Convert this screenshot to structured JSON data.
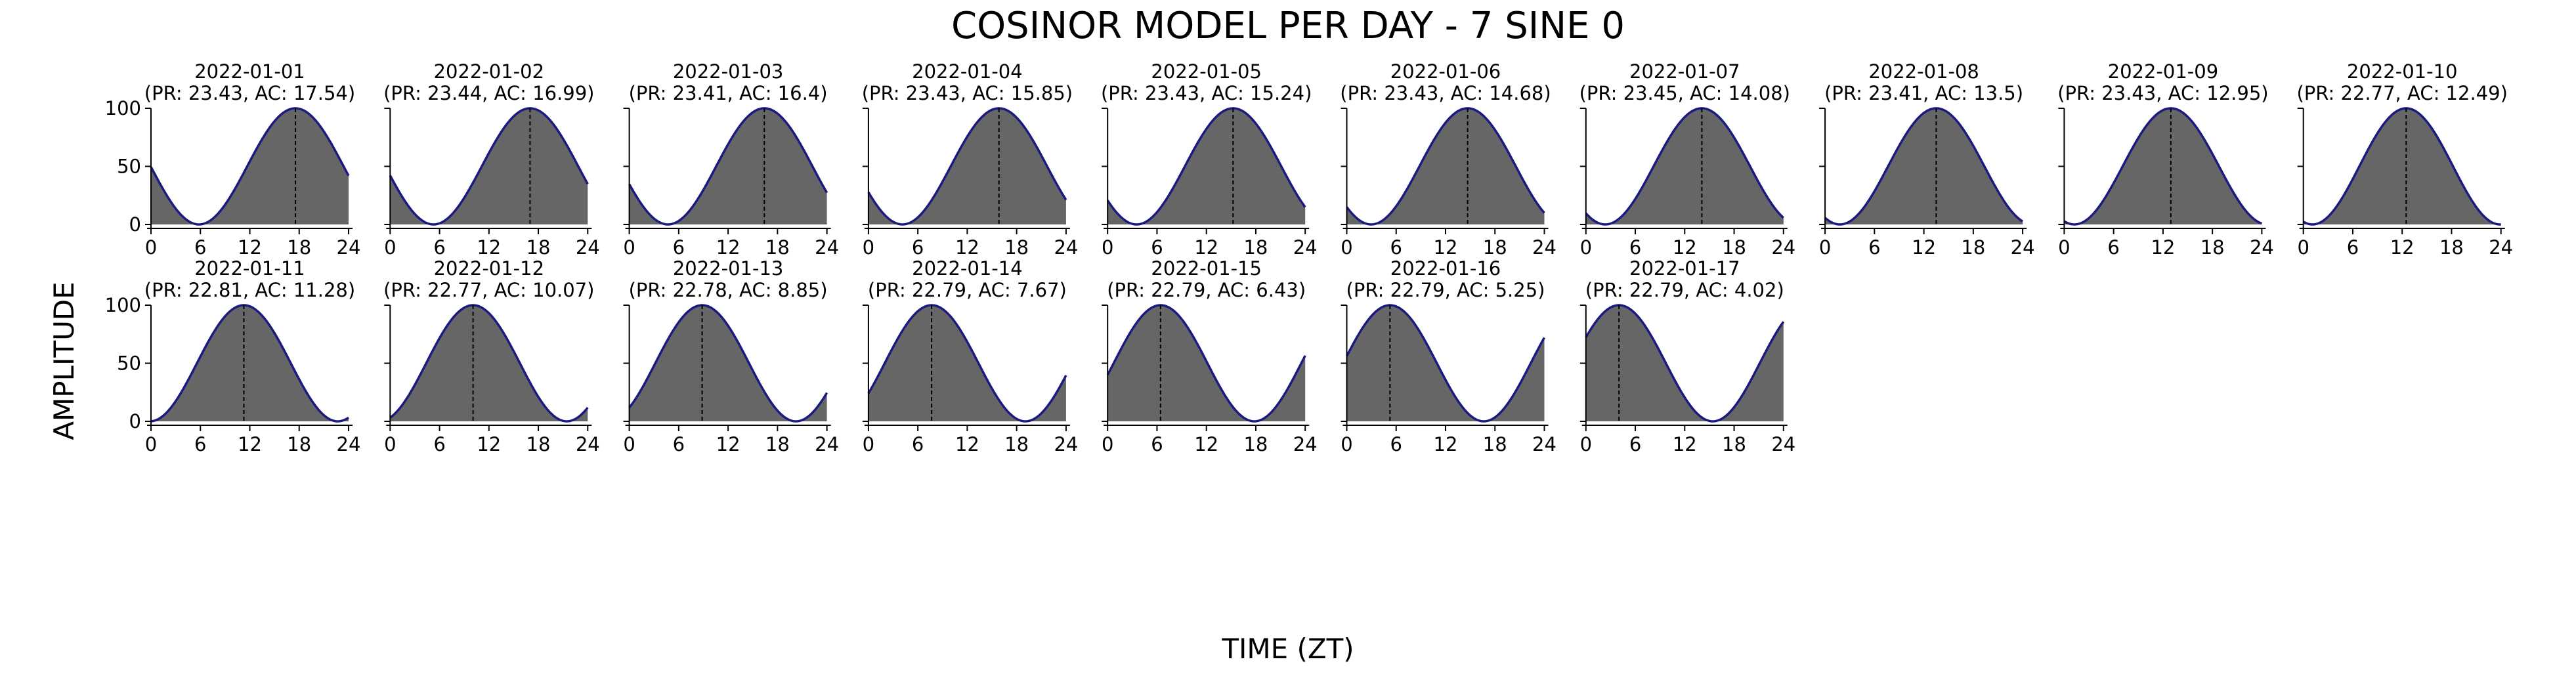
{
  "figure": {
    "title": "COSINOR MODEL PER DAY - 7 SINE 0",
    "xlabel": "TIME (ZT)",
    "ylabel": "AMPLITUDE"
  },
  "colors": {
    "fill": "#666666",
    "curve": "#1a1a80",
    "axis": "#000000",
    "acrophase_line": "#000000"
  },
  "chart_data": {
    "type": "area",
    "model": "cosinor (amplitude 0-100 vs time)",
    "x_range": [
      0,
      24
    ],
    "y_range": [
      0,
      100
    ],
    "x_ticks": [
      0,
      6,
      12,
      18,
      24
    ],
    "y_ticks": [
      0,
      50,
      100
    ],
    "grid": false,
    "panels": [
      {
        "date": "2022-01-01",
        "label": "(PR: 23.43, AC: 17.54)",
        "period": 23.43,
        "acrophase": 17.54
      },
      {
        "date": "2022-01-02",
        "label": "(PR: 23.44, AC: 16.99)",
        "period": 23.44,
        "acrophase": 16.99
      },
      {
        "date": "2022-01-03",
        "label": "(PR: 23.41, AC: 16.4)",
        "period": 23.41,
        "acrophase": 16.4
      },
      {
        "date": "2022-01-04",
        "label": "(PR: 23.43, AC: 15.85)",
        "period": 23.43,
        "acrophase": 15.85
      },
      {
        "date": "2022-01-05",
        "label": "(PR: 23.43, AC: 15.24)",
        "period": 23.43,
        "acrophase": 15.24
      },
      {
        "date": "2022-01-06",
        "label": "(PR: 23.43, AC: 14.68)",
        "period": 23.43,
        "acrophase": 14.68
      },
      {
        "date": "2022-01-07",
        "label": "(PR: 23.45, AC: 14.08)",
        "period": 23.45,
        "acrophase": 14.08
      },
      {
        "date": "2022-01-08",
        "label": "(PR: 23.41, AC: 13.5)",
        "period": 23.41,
        "acrophase": 13.5
      },
      {
        "date": "2022-01-09",
        "label": "(PR: 23.43, AC: 12.95)",
        "period": 23.43,
        "acrophase": 12.95
      },
      {
        "date": "2022-01-10",
        "label": "(PR: 22.77, AC: 12.49)",
        "period": 22.77,
        "acrophase": 12.49
      },
      {
        "date": "2022-01-11",
        "label": "(PR: 22.81, AC: 11.28)",
        "period": 22.81,
        "acrophase": 11.28
      },
      {
        "date": "2022-01-12",
        "label": "(PR: 22.77, AC: 10.07)",
        "period": 22.77,
        "acrophase": 10.07
      },
      {
        "date": "2022-01-13",
        "label": "(PR: 22.78, AC: 8.85)",
        "period": 22.78,
        "acrophase": 8.85
      },
      {
        "date": "2022-01-14",
        "label": "(PR: 22.79, AC: 7.67)",
        "period": 22.79,
        "acrophase": 7.67
      },
      {
        "date": "2022-01-15",
        "label": "(PR: 22.79, AC: 6.43)",
        "period": 22.79,
        "acrophase": 6.43
      },
      {
        "date": "2022-01-16",
        "label": "(PR: 22.79, AC: 5.25)",
        "period": 22.79,
        "acrophase": 5.25
      },
      {
        "date": "2022-01-17",
        "label": "(PR: 22.79, AC: 4.02)",
        "period": 22.79,
        "acrophase": 4.02
      }
    ]
  }
}
